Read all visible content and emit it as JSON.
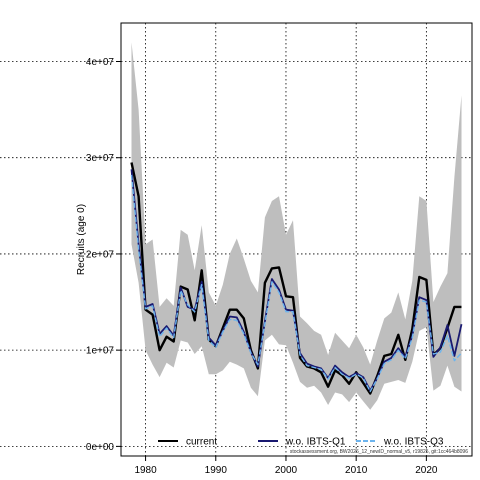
{
  "chart_data": {
    "type": "line",
    "title": "",
    "xlabel": "",
    "ylabel": "Recruits (age 0)",
    "xlim": [
      1976.5,
      2026.5
    ],
    "ylim": [
      -1000000,
      44000000
    ],
    "x_ticks": [
      1980,
      1990,
      2000,
      2010,
      2020
    ],
    "x_tick_labels": [
      "1980",
      "1990",
      "2000",
      "2010",
      "2020"
    ],
    "y_ticks": [
      0,
      10000000,
      20000000,
      30000000,
      40000000
    ],
    "y_tick_labels": [
      "0e+00",
      "1e+07",
      "2e+07",
      "3e+07",
      "4e+07"
    ],
    "grid": true,
    "legend_position": "bottom",
    "footnote": "stockassessment.org, BW2026_12_newID_normal_v5, r19825, git:1cc464b8096",
    "x": [
      1978,
      1979,
      1980,
      1981,
      1982,
      1983,
      1984,
      1985,
      1986,
      1987,
      1988,
      1989,
      1990,
      1991,
      1992,
      1993,
      1994,
      1995,
      1996,
      1997,
      1998,
      1999,
      2000,
      2001,
      2002,
      2003,
      2004,
      2005,
      2006,
      2007,
      2008,
      2009,
      2010,
      2011,
      2012,
      2013,
      2014,
      2015,
      2016,
      2017,
      2018,
      2019,
      2020,
      2021,
      2022,
      2023,
      2024,
      2025
    ],
    "band": {
      "name": "confidence interval",
      "color": "#bebebe",
      "lower": [
        21000000,
        17000000,
        10000000,
        8500000,
        7200000,
        8700000,
        8200000,
        11000000,
        10800000,
        9600000,
        10400000,
        7500000,
        7500000,
        7900000,
        8800000,
        8500000,
        8100000,
        6100000,
        5200000,
        11000000,
        11600000,
        10600000,
        10500000,
        8700000,
        6700000,
        6100000,
        6300000,
        5600000,
        4300000,
        5600000,
        5400000,
        4600000,
        5600000,
        4700000,
        3800000,
        4800000,
        6500000,
        6700000,
        6900000,
        6600000,
        8800000,
        12000000,
        12400000,
        5800000,
        6300000,
        8400000,
        6200000,
        5700000
      ],
      "upper": [
        42000000,
        35000000,
        21000000,
        21500000,
        14500000,
        15400000,
        14600000,
        22500000,
        22000000,
        18300000,
        23000000,
        16000000,
        14600000,
        16800000,
        20000000,
        21600000,
        19500000,
        17200000,
        16000000,
        23800000,
        25500000,
        26000000,
        22000000,
        23500000,
        13500000,
        12800000,
        12000000,
        11600000,
        9500000,
        11800000,
        11000000,
        10200000,
        11600000,
        10300000,
        8500000,
        11000000,
        13300000,
        13900000,
        16000000,
        13200000,
        17200000,
        26000000,
        25500000,
        15000000,
        16600000,
        18000000,
        28000000,
        36500000
      ]
    },
    "series": [
      {
        "name": "current",
        "color": "#000000",
        "style": "solid",
        "values": [
          29500000,
          26000000,
          14200000,
          13700000,
          10000000,
          11400000,
          10900000,
          16600000,
          16300000,
          13100000,
          18300000,
          11100000,
          10400000,
          12300000,
          14200000,
          14200000,
          13300000,
          10000000,
          8100000,
          17000000,
          18500000,
          18600000,
          15600000,
          15500000,
          9200000,
          8300000,
          8100000,
          7700000,
          6200000,
          7900000,
          7400000,
          6500000,
          7700000,
          6600000,
          5500000,
          7300000,
          9400000,
          9600000,
          11600000,
          9000000,
          12200000,
          17600000,
          17300000,
          9500000,
          10200000,
          12300000,
          14500000,
          14500000
        ]
      },
      {
        "name": "w.o. IBTS-Q1",
        "color": "#191970",
        "style": "solid",
        "values": [
          28800000,
          21000000,
          14500000,
          14800000,
          11700000,
          12500000,
          11500000,
          16500000,
          14500000,
          14200000,
          17100000,
          11300000,
          10500000,
          12000000,
          13500000,
          13400000,
          11900000,
          9800000,
          8300000,
          13000000,
          17400000,
          16300000,
          14200000,
          14100000,
          9700000,
          8600000,
          8300000,
          8100000,
          7100000,
          8400000,
          7700000,
          7200000,
          7600000,
          7200000,
          5800000,
          7100000,
          8800000,
          9200000,
          10200000,
          9300000,
          11500000,
          15500000,
          15200000,
          9300000,
          10300000,
          12600000,
          9400000,
          12700000
        ]
      },
      {
        "name": "w.o. IBTS-Q3",
        "color": "#6cb4ee",
        "style": "dashed",
        "values": [
          28200000,
          20500000,
          14300000,
          14600000,
          11400000,
          12300000,
          11300000,
          16200000,
          14700000,
          14000000,
          16800000,
          11000000,
          10300000,
          11900000,
          13200000,
          13100000,
          11700000,
          9700000,
          8500000,
          12800000,
          17100000,
          16000000,
          14000000,
          14000000,
          9500000,
          8400000,
          8200000,
          8000000,
          7000000,
          8200000,
          7500000,
          7100000,
          7500000,
          7100000,
          5700000,
          7000000,
          8600000,
          9000000,
          10000000,
          9100000,
          11300000,
          15200000,
          15000000,
          9600000,
          9800000,
          11500000,
          8900000,
          9700000
        ]
      }
    ]
  }
}
